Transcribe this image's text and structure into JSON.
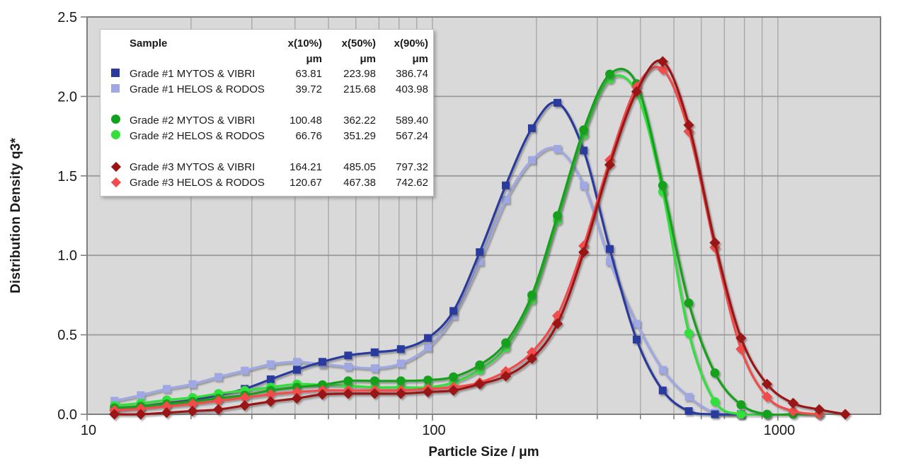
{
  "chart_data": {
    "type": "line",
    "title": "",
    "xlabel": "Particle Size / μm",
    "ylabel": "Distribution Density q3*",
    "x_scale": "log",
    "xlim": [
      10,
      1980
    ],
    "ylim": [
      0,
      2.5
    ],
    "grid": true,
    "x_major_ticks": [
      {
        "v": 10,
        "label": "10"
      },
      {
        "v": 100,
        "label": "100"
      },
      {
        "v": 1000,
        "label": "1000"
      }
    ],
    "x_minor_ticks": [
      20,
      30,
      40,
      50,
      60,
      70,
      80,
      90,
      200,
      300,
      400,
      500,
      600,
      700,
      800,
      900
    ],
    "y_ticks": [
      {
        "v": 0.0,
        "label": "0.0"
      },
      {
        "v": 0.5,
        "label": "0.5"
      },
      {
        "v": 1.0,
        "label": "1.0"
      },
      {
        "v": 1.5,
        "label": "1.5"
      },
      {
        "v": 2.0,
        "label": "2.0"
      },
      {
        "v": 2.5,
        "label": "2.5"
      }
    ],
    "legend_position": "top-left",
    "legend_header": {
      "sample": "Sample",
      "col1": "x(10%)",
      "col2": "x(50%)",
      "col3": "x(90%)",
      "unit": "μm"
    },
    "series": [
      {
        "name": "Grade #1 MYTOS & VIBRI",
        "marker": "square",
        "color": "#2C3A9E",
        "x10": "63.81",
        "x50": "223.98",
        "x90": "386.74",
        "group": 1,
        "points": [
          [
            12,
            0.03
          ],
          [
            14.3,
            0.05
          ],
          [
            17,
            0.07
          ],
          [
            20.2,
            0.09
          ],
          [
            24,
            0.12
          ],
          [
            28.6,
            0.16
          ],
          [
            34,
            0.22
          ],
          [
            40.5,
            0.28
          ],
          [
            48,
            0.33
          ],
          [
            57,
            0.37
          ],
          [
            68,
            0.39
          ],
          [
            81,
            0.41
          ],
          [
            97,
            0.48
          ],
          [
            115,
            0.65
          ],
          [
            137,
            1.02
          ],
          [
            163,
            1.44
          ],
          [
            194,
            1.8
          ],
          [
            230,
            1.96
          ],
          [
            274,
            1.66
          ],
          [
            326,
            1.04
          ],
          [
            390,
            0.47
          ],
          [
            464,
            0.15
          ],
          [
            552,
            0.02
          ],
          [
            657,
            0.0
          ],
          [
            782,
            0.0
          ]
        ]
      },
      {
        "name": "Grade #1 HELOS & RODOS",
        "marker": "square",
        "color": "#9FA8E2",
        "x10": "39.72",
        "x50": "215.68",
        "x90": "403.98",
        "group": 1,
        "points": [
          [
            12,
            0.085
          ],
          [
            14.3,
            0.12
          ],
          [
            17,
            0.16
          ],
          [
            20.2,
            0.19
          ],
          [
            24,
            0.235
          ],
          [
            28.6,
            0.275
          ],
          [
            34,
            0.315
          ],
          [
            40.5,
            0.33
          ],
          [
            48,
            0.315
          ],
          [
            57,
            0.3
          ],
          [
            68,
            0.29
          ],
          [
            81,
            0.32
          ],
          [
            97,
            0.42
          ],
          [
            115,
            0.62
          ],
          [
            137,
            0.96
          ],
          [
            163,
            1.35
          ],
          [
            194,
            1.6
          ],
          [
            230,
            1.67
          ],
          [
            274,
            1.44
          ],
          [
            326,
            0.96
          ],
          [
            390,
            0.57
          ],
          [
            464,
            0.28
          ],
          [
            552,
            0.11
          ],
          [
            657,
            0.01
          ],
          [
            782,
            0.0
          ]
        ]
      },
      {
        "name": "Grade #2 MYTOS & VIBRI",
        "marker": "circle",
        "color": "#12A11E",
        "x10": "100.48",
        "x50": "362.22",
        "x90": "589.40",
        "group": 2,
        "points": [
          [
            12,
            0.04
          ],
          [
            14.3,
            0.05
          ],
          [
            17,
            0.065
          ],
          [
            20.2,
            0.08
          ],
          [
            24,
            0.1
          ],
          [
            28.6,
            0.12
          ],
          [
            34,
            0.15
          ],
          [
            40.5,
            0.17
          ],
          [
            48,
            0.185
          ],
          [
            57,
            0.21
          ],
          [
            68,
            0.21
          ],
          [
            81,
            0.21
          ],
          [
            97,
            0.215
          ],
          [
            115,
            0.235
          ],
          [
            137,
            0.31
          ],
          [
            163,
            0.45
          ],
          [
            194,
            0.75
          ],
          [
            230,
            1.25
          ],
          [
            274,
            1.79
          ],
          [
            326,
            2.14
          ],
          [
            390,
            2.08
          ],
          [
            464,
            1.44
          ],
          [
            552,
            0.7
          ],
          [
            657,
            0.26
          ],
          [
            782,
            0.06
          ],
          [
            930,
            0.0
          ],
          [
            1107,
            0.0
          ],
          [
            1317,
            0.0
          ]
        ]
      },
      {
        "name": "Grade #2 HELOS & RODOS",
        "marker": "circle",
        "color": "#33E03A",
        "x10": "66.76",
        "x50": "351.29",
        "x90": "567.24",
        "group": 2,
        "points": [
          [
            12,
            0.055
          ],
          [
            14.3,
            0.07
          ],
          [
            17,
            0.09
          ],
          [
            20.2,
            0.105
          ],
          [
            24,
            0.13
          ],
          [
            28.6,
            0.15
          ],
          [
            34,
            0.17
          ],
          [
            40.5,
            0.19
          ],
          [
            48,
            0.185
          ],
          [
            57,
            0.18
          ],
          [
            68,
            0.17
          ],
          [
            81,
            0.17
          ],
          [
            97,
            0.17
          ],
          [
            115,
            0.2
          ],
          [
            137,
            0.28
          ],
          [
            163,
            0.42
          ],
          [
            194,
            0.72
          ],
          [
            230,
            1.22
          ],
          [
            274,
            1.76
          ],
          [
            326,
            2.11
          ],
          [
            390,
            2.02
          ],
          [
            464,
            1.4
          ],
          [
            552,
            0.51
          ],
          [
            657,
            0.08
          ],
          [
            782,
            0.0
          ],
          [
            930,
            0.0
          ]
        ]
      },
      {
        "name": "Grade #3 MYTOS & VIBRI",
        "marker": "diamond",
        "color": "#9A1312",
        "x10": "164.21",
        "x50": "485.05",
        "x90": "797.32",
        "group": 3,
        "points": [
          [
            12,
            0.0
          ],
          [
            14.3,
            0.0
          ],
          [
            17,
            0.01
          ],
          [
            20.2,
            0.02
          ],
          [
            24,
            0.03
          ],
          [
            28.6,
            0.055
          ],
          [
            34,
            0.08
          ],
          [
            40.5,
            0.1
          ],
          [
            48,
            0.125
          ],
          [
            57,
            0.13
          ],
          [
            68,
            0.13
          ],
          [
            81,
            0.13
          ],
          [
            97,
            0.14
          ],
          [
            115,
            0.15
          ],
          [
            137,
            0.19
          ],
          [
            163,
            0.24
          ],
          [
            194,
            0.35
          ],
          [
            230,
            0.57
          ],
          [
            274,
            1.02
          ],
          [
            326,
            1.57
          ],
          [
            390,
            2.03
          ],
          [
            464,
            2.22
          ],
          [
            552,
            1.82
          ],
          [
            657,
            1.08
          ],
          [
            782,
            0.48
          ],
          [
            930,
            0.19
          ],
          [
            1107,
            0.07
          ],
          [
            1317,
            0.03
          ],
          [
            1567,
            0.0
          ]
        ]
      },
      {
        "name": "Grade #3 HELOS & RODOS",
        "marker": "diamond",
        "color": "#F14C4C",
        "x10": "120.67",
        "x50": "467.38",
        "x90": "742.62",
        "group": 3,
        "points": [
          [
            12,
            0.025
          ],
          [
            14.3,
            0.035
          ],
          [
            17,
            0.05
          ],
          [
            20.2,
            0.065
          ],
          [
            24,
            0.085
          ],
          [
            28.6,
            0.105
          ],
          [
            34,
            0.125
          ],
          [
            40.5,
            0.14
          ],
          [
            48,
            0.15
          ],
          [
            57,
            0.15
          ],
          [
            68,
            0.15
          ],
          [
            81,
            0.15
          ],
          [
            97,
            0.16
          ],
          [
            115,
            0.17
          ],
          [
            137,
            0.2
          ],
          [
            163,
            0.27
          ],
          [
            194,
            0.39
          ],
          [
            230,
            0.62
          ],
          [
            274,
            1.06
          ],
          [
            326,
            1.6
          ],
          [
            390,
            2.06
          ],
          [
            464,
            2.17
          ],
          [
            552,
            1.78
          ],
          [
            657,
            1.05
          ],
          [
            782,
            0.41
          ],
          [
            930,
            0.11
          ],
          [
            1107,
            0.02
          ],
          [
            1317,
            0.0
          ]
        ]
      }
    ]
  },
  "colors": {
    "plot_bg": "#D9D9D9",
    "page_bg": "#FFFFFF",
    "grid_v": "#A8A8A8",
    "grid_h": "#9A9A9A",
    "border": "#7F7F7F",
    "tick": "#7F7F7F",
    "text": "#1A1A1A",
    "legend_border": "#BDBDBD"
  }
}
